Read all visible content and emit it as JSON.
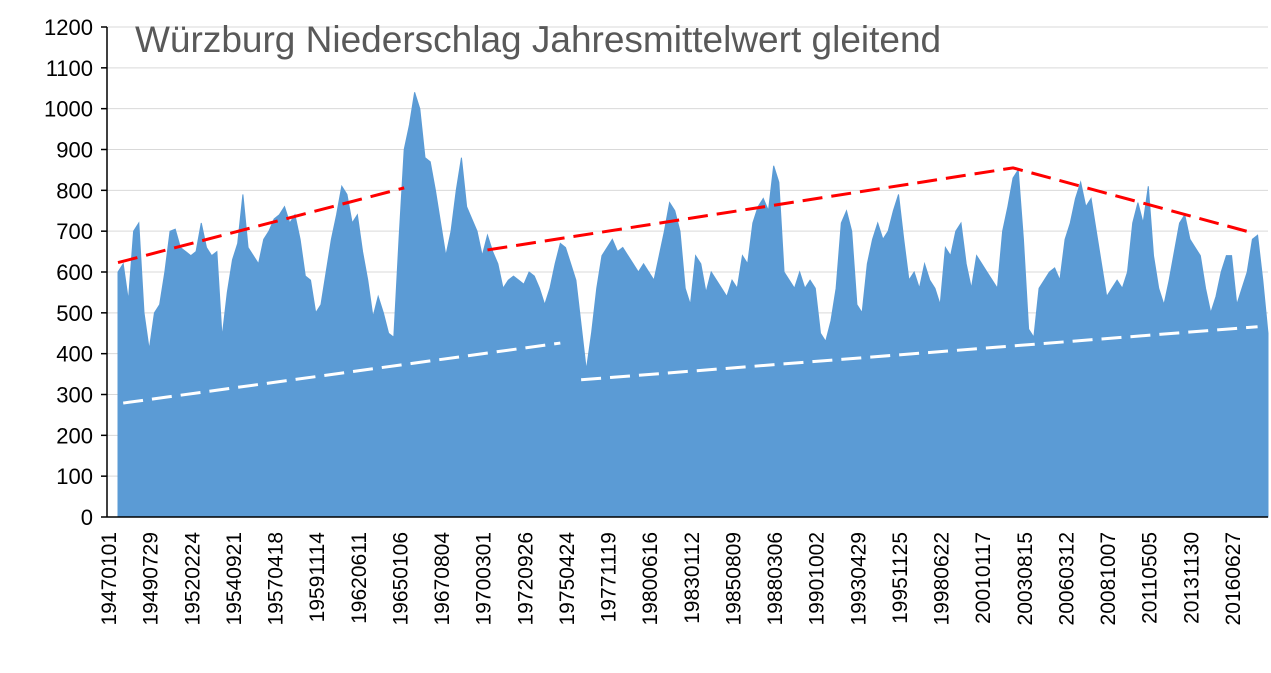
{
  "chart_data": {
    "type": "area",
    "title": "Würzburg Niederschlag Jahresmittelwert gleitend",
    "categories": [
      "19470101",
      null,
      null,
      null,
      null,
      null,
      null,
      null,
      "19490729",
      null,
      null,
      null,
      null,
      null,
      null,
      null,
      "19520224",
      null,
      null,
      null,
      null,
      null,
      null,
      null,
      "19540921",
      null,
      null,
      null,
      null,
      null,
      null,
      null,
      "19570418",
      null,
      null,
      null,
      null,
      null,
      null,
      null,
      "19591114",
      null,
      null,
      null,
      null,
      null,
      null,
      null,
      "19620611",
      null,
      null,
      null,
      null,
      null,
      null,
      null,
      "19650106",
      null,
      null,
      null,
      null,
      null,
      null,
      null,
      "19670804",
      null,
      null,
      null,
      null,
      null,
      null,
      null,
      "19700301",
      null,
      null,
      null,
      null,
      null,
      null,
      null,
      "19720926",
      null,
      null,
      null,
      null,
      null,
      null,
      null,
      "19750424",
      null,
      null,
      null,
      null,
      null,
      null,
      null,
      "19771119",
      null,
      null,
      null,
      null,
      null,
      null,
      null,
      "19800616",
      null,
      null,
      null,
      null,
      null,
      null,
      null,
      "19830112",
      null,
      null,
      null,
      null,
      null,
      null,
      null,
      "19850809",
      null,
      null,
      null,
      null,
      null,
      null,
      null,
      "19880306",
      null,
      null,
      null,
      null,
      null,
      null,
      null,
      "19901002",
      null,
      null,
      null,
      null,
      null,
      null,
      null,
      "19930429",
      null,
      null,
      null,
      null,
      null,
      null,
      null,
      "19951125",
      null,
      null,
      null,
      null,
      null,
      null,
      null,
      "19980622",
      null,
      null,
      null,
      null,
      null,
      null,
      null,
      "20010117",
      null,
      null,
      null,
      null,
      null,
      null,
      null,
      "20030815",
      null,
      null,
      null,
      null,
      null,
      null,
      null,
      "20060312",
      null,
      null,
      null,
      null,
      null,
      null,
      null,
      "20081007",
      null,
      null,
      null,
      null,
      null,
      null,
      null,
      "20110505",
      null,
      null,
      null,
      null,
      null,
      null,
      null,
      "20131130",
      null,
      null,
      null,
      null,
      null,
      null,
      null,
      "20160627",
      null,
      null,
      null,
      null,
      null
    ],
    "values": [
      600,
      620,
      530,
      700,
      720,
      500,
      410,
      500,
      520,
      600,
      700,
      705,
      660,
      650,
      640,
      650,
      720,
      660,
      640,
      650,
      440,
      550,
      630,
      670,
      790,
      660,
      640,
      620,
      680,
      700,
      730,
      740,
      760,
      720,
      740,
      680,
      590,
      580,
      500,
      520,
      600,
      680,
      740,
      810,
      790,
      720,
      740,
      650,
      580,
      490,
      540,
      500,
      450,
      440,
      680,
      900,
      960,
      1040,
      1000,
      880,
      870,
      800,
      720,
      640,
      700,
      800,
      880,
      760,
      730,
      700,
      640,
      690,
      650,
      620,
      560,
      580,
      590,
      580,
      570,
      600,
      590,
      560,
      520,
      560,
      620,
      670,
      660,
      620,
      580,
      470,
      360,
      450,
      560,
      640,
      660,
      680,
      650,
      660,
      640,
      620,
      600,
      620,
      600,
      580,
      640,
      700,
      770,
      750,
      700,
      560,
      520,
      640,
      620,
      550,
      600,
      580,
      560,
      540,
      580,
      560,
      640,
      620,
      720,
      760,
      780,
      750,
      860,
      820,
      600,
      580,
      560,
      600,
      560,
      580,
      560,
      450,
      430,
      480,
      560,
      720,
      750,
      700,
      520,
      500,
      620,
      680,
      720,
      680,
      700,
      750,
      790,
      680,
      580,
      600,
      560,
      620,
      580,
      560,
      520,
      660,
      640,
      700,
      720,
      620,
      560,
      640,
      620,
      600,
      580,
      560,
      700,
      760,
      830,
      850,
      680,
      460,
      440,
      560,
      580,
      600,
      610,
      580,
      680,
      720,
      780,
      820,
      760,
      780,
      700,
      620,
      540,
      560,
      580,
      560,
      600,
      720,
      770,
      720,
      810,
      640,
      560,
      520,
      580,
      650,
      720,
      740,
      680,
      660,
      640,
      560,
      500,
      540,
      600,
      640,
      640,
      520,
      560,
      600,
      680,
      690,
      580,
      450
    ],
    "color": "#5b9bd5",
    "trend_lines": [
      {
        "color": "#ff0000",
        "points": [
          [
            0,
            623
          ],
          [
            55,
            806
          ]
        ]
      },
      {
        "color": "#ff0000",
        "points": [
          [
            71,
            654
          ],
          [
            172,
            855
          ],
          [
            218,
            696
          ]
        ]
      },
      {
        "color": "#ffffff",
        "points": [
          [
            1,
            279
          ],
          [
            85,
            426
          ]
        ]
      },
      {
        "color": "#ffffff",
        "points": [
          [
            89,
            336
          ],
          [
            219,
            466
          ]
        ]
      }
    ],
    "ylim": [
      0,
      1200
    ],
    "yticks": [
      0,
      100,
      200,
      300,
      400,
      500,
      600,
      700,
      800,
      900,
      1000,
      1100,
      1200
    ],
    "grid": true
  }
}
